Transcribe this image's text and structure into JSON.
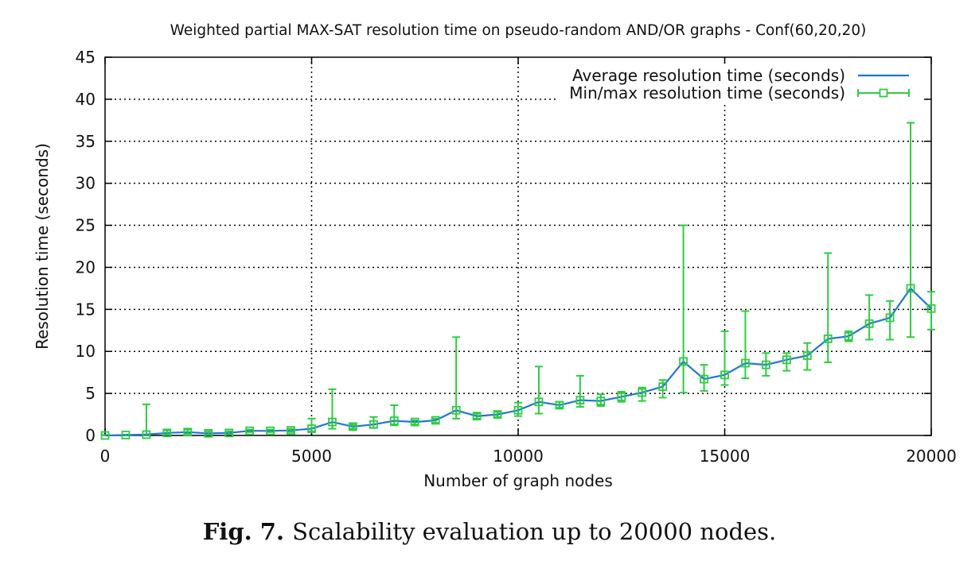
{
  "chart_data": {
    "type": "line",
    "title": "Weighted partial MAX-SAT resolution time on pseudo-random AND/OR graphs - Conf(60,20,20)",
    "xlabel": "Number of graph nodes",
    "ylabel": "Resolution time (seconds)",
    "xlim": [
      0,
      20000
    ],
    "ylim": [
      0,
      45
    ],
    "xticks": [
      0,
      5000,
      10000,
      15000,
      20000
    ],
    "yticks": [
      0,
      5,
      10,
      15,
      20,
      25,
      30,
      35,
      40,
      45
    ],
    "grid": true,
    "legend_position": "top-right",
    "series": [
      {
        "name": "Average resolution time (seconds)",
        "color": "#1f77d4",
        "x": [
          0,
          500,
          1000,
          1500,
          2000,
          2500,
          3000,
          3500,
          4000,
          4500,
          5000,
          5500,
          6000,
          6500,
          7000,
          7500,
          8000,
          8500,
          9000,
          9500,
          10000,
          10500,
          11000,
          11500,
          12000,
          12500,
          13000,
          13500,
          14000,
          14500,
          15000,
          15500,
          16000,
          16500,
          17000,
          17500,
          18000,
          18500,
          19000,
          19500,
          20000
        ],
        "y": [
          0.0,
          0.05,
          0.1,
          0.3,
          0.4,
          0.25,
          0.3,
          0.55,
          0.55,
          0.6,
          0.8,
          1.6,
          1.05,
          1.3,
          1.75,
          1.6,
          1.8,
          3.0,
          2.3,
          2.5,
          3.0,
          4.0,
          3.6,
          4.2,
          4.1,
          4.6,
          5.1,
          5.8,
          8.8,
          6.7,
          7.2,
          8.6,
          8.4,
          9.0,
          9.5,
          11.5,
          11.8,
          13.3,
          14.0,
          17.5,
          15.1
        ]
      },
      {
        "name": "Min/max resolution time (seconds)",
        "color": "#2ecc40",
        "x": [
          0,
          500,
          1000,
          1500,
          2000,
          2500,
          3000,
          3500,
          4000,
          4500,
          5000,
          5500,
          6000,
          6500,
          7000,
          7500,
          8000,
          8500,
          9000,
          9500,
          10000,
          10500,
          11000,
          11500,
          12000,
          12500,
          13000,
          13500,
          14000,
          14500,
          15000,
          15500,
          16000,
          16500,
          17000,
          17500,
          18000,
          18500,
          19000,
          19500,
          20000
        ],
        "y": [
          0.0,
          0.05,
          0.1,
          0.3,
          0.4,
          0.25,
          0.3,
          0.55,
          0.55,
          0.6,
          0.8,
          1.6,
          1.05,
          1.3,
          1.75,
          1.6,
          1.8,
          3.0,
          2.3,
          2.5,
          3.0,
          4.0,
          3.6,
          4.2,
          4.1,
          4.6,
          5.1,
          5.8,
          8.8,
          6.7,
          7.2,
          8.6,
          8.4,
          9.0,
          9.5,
          11.5,
          11.8,
          13.3,
          14.0,
          17.5,
          15.1
        ],
        "ymin": [
          0.0,
          0.0,
          0.0,
          0.1,
          0.2,
          0.1,
          0.2,
          0.4,
          0.4,
          0.4,
          0.5,
          0.8,
          0.8,
          0.9,
          1.2,
          1.3,
          1.5,
          2.0,
          2.0,
          2.2,
          2.3,
          2.6,
          3.3,
          3.4,
          3.5,
          4.0,
          4.1,
          4.5,
          5.1,
          5.3,
          6.0,
          6.8,
          7.1,
          7.7,
          7.8,
          8.7,
          11.2,
          11.4,
          11.4,
          11.7,
          12.6
        ],
        "ymax": [
          0.05,
          0.1,
          3.7,
          0.6,
          0.7,
          0.5,
          0.5,
          0.7,
          0.7,
          0.8,
          2.0,
          5.5,
          1.3,
          2.2,
          3.6,
          1.8,
          2.0,
          11.7,
          2.6,
          2.8,
          3.9,
          8.2,
          4.0,
          7.1,
          4.9,
          5.2,
          5.7,
          6.6,
          25.0,
          8.4,
          12.4,
          14.8,
          9.8,
          9.8,
          11.0,
          21.7,
          12.4,
          16.7,
          16.0,
          37.2,
          17.1
        ]
      }
    ]
  },
  "caption": {
    "label": "Fig. 7.",
    "text": "Scalability evaluation up to 20000 nodes."
  }
}
